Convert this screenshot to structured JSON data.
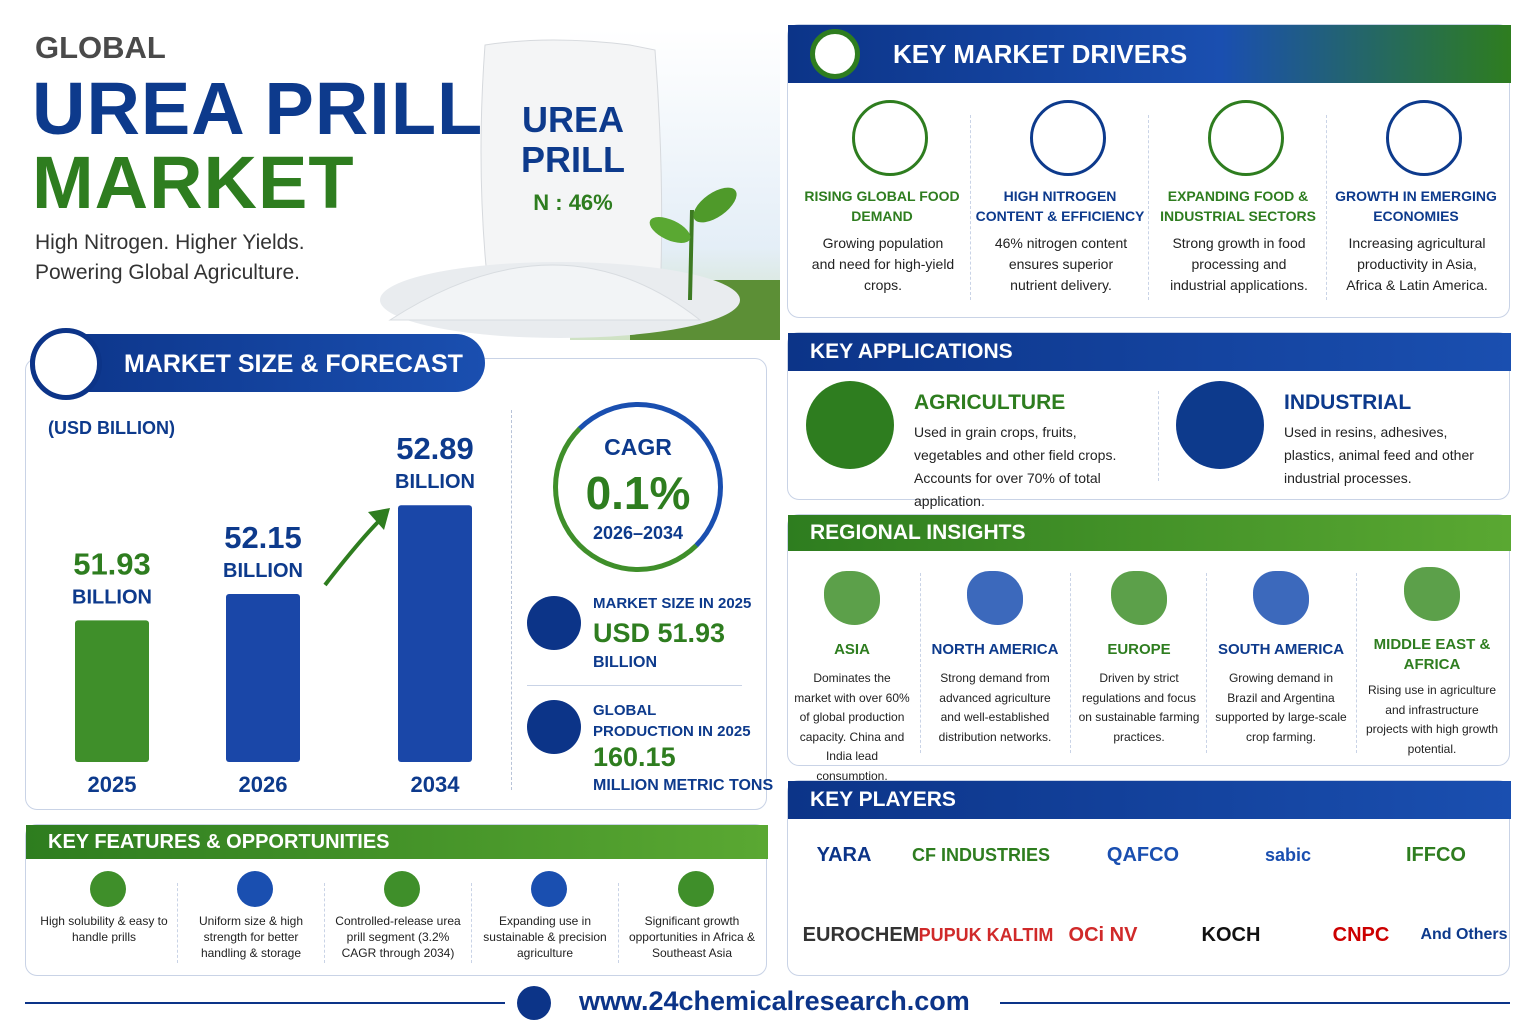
{
  "header": {
    "eyebrow": "GLOBAL",
    "title_line1": "UREA PRILL",
    "title_line2": "MARKET",
    "tagline": [
      "High Nitrogen. Higher Yields.",
      "Powering Global Agriculture."
    ]
  },
  "bag": {
    "lines": [
      "UREA",
      "PRILL"
    ],
    "label": "N : 46%"
  },
  "chart_data": {
    "type": "bar",
    "title": "MARKET SIZE & FORECAST",
    "unit_label": "(USD BILLION)",
    "categories": [
      "2025",
      "2026",
      "2034"
    ],
    "values": [
      51.93,
      52.15,
      52.89
    ],
    "value_unit": "BILLION",
    "colors": [
      "#3f8f2a",
      "#1a47a8",
      "#1a47a8"
    ],
    "ylim": [
      50.75,
      53.5
    ]
  },
  "cagr": {
    "label": "CAGR",
    "value": "0.1%",
    "period": "2026–2034"
  },
  "stats": [
    {
      "label": "MARKET SIZE IN 2025",
      "value": "USD 51.93",
      "unit": "BILLION"
    },
    {
      "label": "GLOBAL PRODUCTION IN 2025",
      "value": "160.15",
      "unit": "MILLION METRIC TONS"
    }
  ],
  "features": {
    "title": "KEY FEATURES & OPPORTUNITIES",
    "items": [
      "High solubility & easy to handle prills",
      "Uniform size & high strength for better handling & storage",
      "Controlled-release urea prill segment (3.2% CAGR through 2034)",
      "Expanding use in sustainable & precision agriculture",
      "Significant growth opportunities in Africa & Southeast Asia"
    ]
  },
  "drivers": {
    "title": "KEY MARKET DRIVERS",
    "items": [
      {
        "title": "RISING GLOBAL FOOD DEMAND",
        "text": "Growing population and need for high-yield crops."
      },
      {
        "title": "HIGH NITROGEN CONTENT & EFFICIENCY",
        "text": "46% nitrogen content ensures superior nutrient delivery."
      },
      {
        "title": "EXPANDING FOOD & INDUSTRIAL SECTORS",
        "text": "Strong growth in food processing and industrial applications."
      },
      {
        "title": "GROWTH IN EMERGING ECONOMIES",
        "text": "Increasing agricultural productivity in Asia, Africa & Latin America."
      }
    ]
  },
  "applications": {
    "title": "KEY APPLICATIONS",
    "items": [
      {
        "title": "AGRICULTURE",
        "text": "Used in grain crops, fruits, vegetables and other field crops. Accounts for over 70% of total application."
      },
      {
        "title": "INDUSTRIAL",
        "text": "Used in resins, adhesives, plastics, animal feed and other industrial processes."
      }
    ]
  },
  "regions": {
    "title": "REGIONAL INSIGHTS",
    "items": [
      {
        "name": "ASIA",
        "text": "Dominates the market with over 60% of global production capacity. China and India lead consumption."
      },
      {
        "name": "NORTH AMERICA",
        "text": "Strong demand from advanced agriculture and well-established distribution networks."
      },
      {
        "name": "EUROPE",
        "text": "Driven by strict regulations and focus on sustainable farming practices."
      },
      {
        "name": "SOUTH AMERICA",
        "text": "Growing demand in Brazil and Argentina supported by large-scale crop farming."
      },
      {
        "name": "MIDDLE EAST & AFRICA",
        "text": "Rising use in agriculture and infrastructure projects with high growth potential."
      }
    ]
  },
  "players": {
    "title": "KEY PLAYERS",
    "names": [
      "YARA",
      "CF INDUSTRIES",
      "QAFCO",
      "sabic",
      "IFFCO",
      "EUROCHEM",
      "PUPUK KALTIM",
      "OCi NV",
      "KOCH",
      "CNPC",
      "And Others"
    ]
  },
  "footer": {
    "url": "www.24chemicalresearch.com"
  }
}
